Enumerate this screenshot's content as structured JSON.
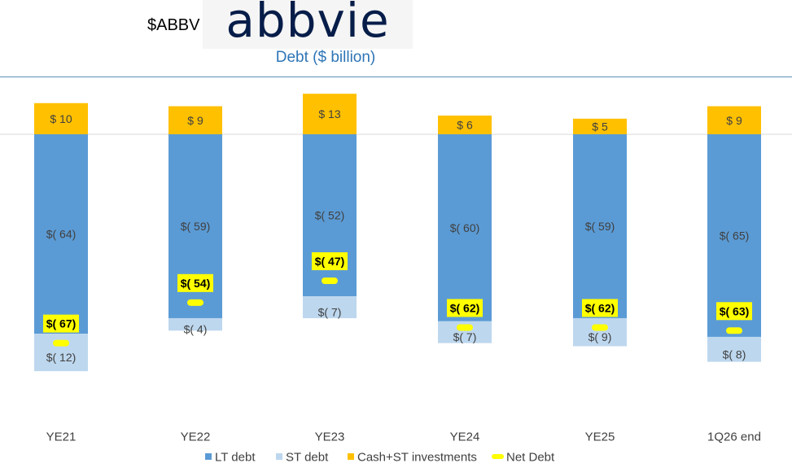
{
  "header": {
    "ticker": "$ABBV",
    "logo_text": "abbvie",
    "title": "Debt ($ billion)"
  },
  "chart_data": {
    "type": "bar",
    "title": "Debt ($ billion)",
    "categories": [
      "YE21",
      "YE22",
      "YE23",
      "YE24",
      "YE25",
      "1Q26 end"
    ],
    "series": [
      {
        "name": "LT debt",
        "color": "#5b9bd5",
        "values": [
          -64,
          -59,
          -52,
          -60,
          -59,
          -65
        ],
        "labels": [
          "$( 64)",
          "$( 59)",
          "$( 52)",
          "$( 60)",
          "$( 59)",
          "$( 65)"
        ]
      },
      {
        "name": "ST debt",
        "color": "#bdd7ee",
        "values": [
          -12,
          -4,
          -7,
          -7,
          -9,
          -8
        ],
        "labels": [
          "$( 12)",
          "$( 4)",
          "$( 7)",
          "$( 7)",
          "$( 9)",
          "$( 8)"
        ]
      },
      {
        "name": "Cash+ST investments",
        "color": "#ffc000",
        "values": [
          10,
          9,
          13,
          6,
          5,
          9
        ],
        "labels": [
          "$ 10",
          "$ 9",
          "$ 13",
          "$ 6",
          "$ 5",
          "$ 9"
        ]
      },
      {
        "name": "Net Debt",
        "color": "#ffff00",
        "values": [
          -67,
          -54,
          -47,
          -62,
          -62,
          -63
        ],
        "labels": [
          "$( 67)",
          "$( 54)",
          "$( 47)",
          "$( 62)",
          "$( 62)",
          "$( 63)"
        ]
      }
    ],
    "legend_position": "bottom",
    "grid": false
  }
}
